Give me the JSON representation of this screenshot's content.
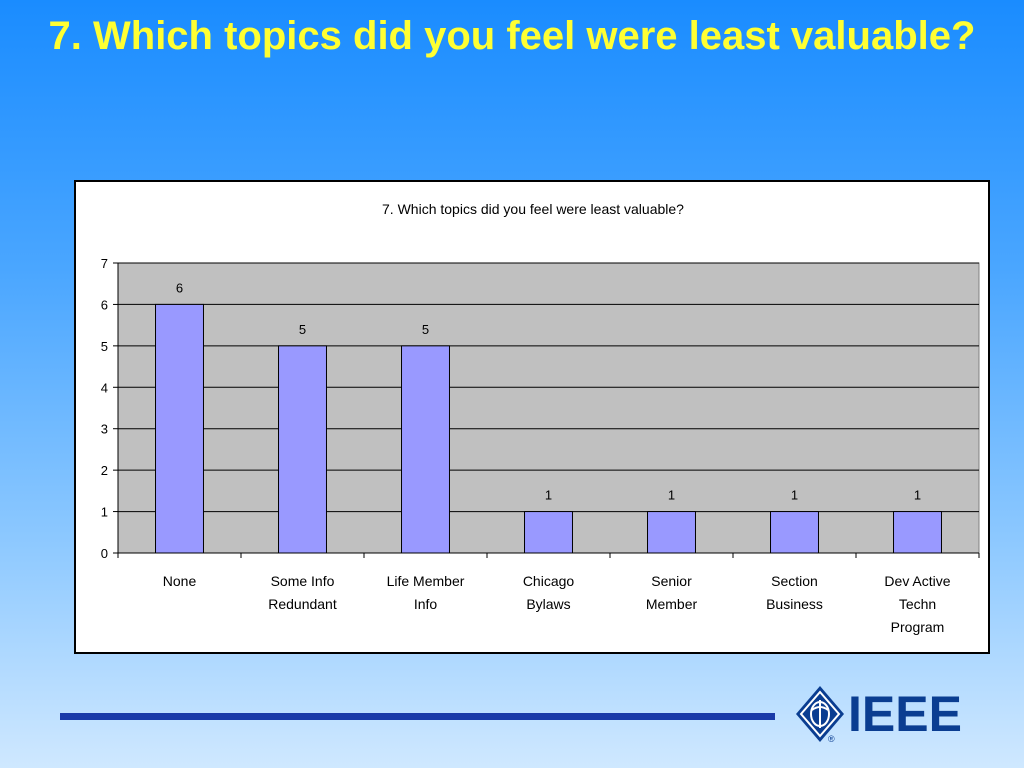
{
  "slide": {
    "title": "7. Which topics did you feel were least valuable?",
    "logo_text": "IEEE",
    "registered_mark": "®"
  },
  "chart_data": {
    "type": "bar",
    "title": "7. Which topics did you feel were least valuable?",
    "categories": [
      [
        "None"
      ],
      [
        "Some Info",
        "Redundant"
      ],
      [
        "Life Member",
        "Info"
      ],
      [
        "Chicago",
        "Bylaws"
      ],
      [
        "Senior",
        "Member"
      ],
      [
        "Section",
        "Business"
      ],
      [
        "Dev Active",
        "Techn",
        "Program"
      ]
    ],
    "values": [
      6,
      5,
      5,
      1,
      1,
      1,
      1
    ],
    "data_labels": [
      "6",
      "5",
      "5",
      "1",
      "1",
      "1",
      "1"
    ],
    "yticks": [
      "0",
      "1",
      "2",
      "3",
      "4",
      "5",
      "6",
      "7"
    ],
    "ylim": [
      0,
      7
    ],
    "grid": true,
    "colors": {
      "bar_fill": "#9999ff",
      "bar_stroke": "#000000",
      "plot_background": "#c0c0c0",
      "gridline": "#000000"
    }
  },
  "colors": {
    "title": "#ffff33",
    "footer_line": "#1a3aa8",
    "logo": "#0a3d91"
  }
}
